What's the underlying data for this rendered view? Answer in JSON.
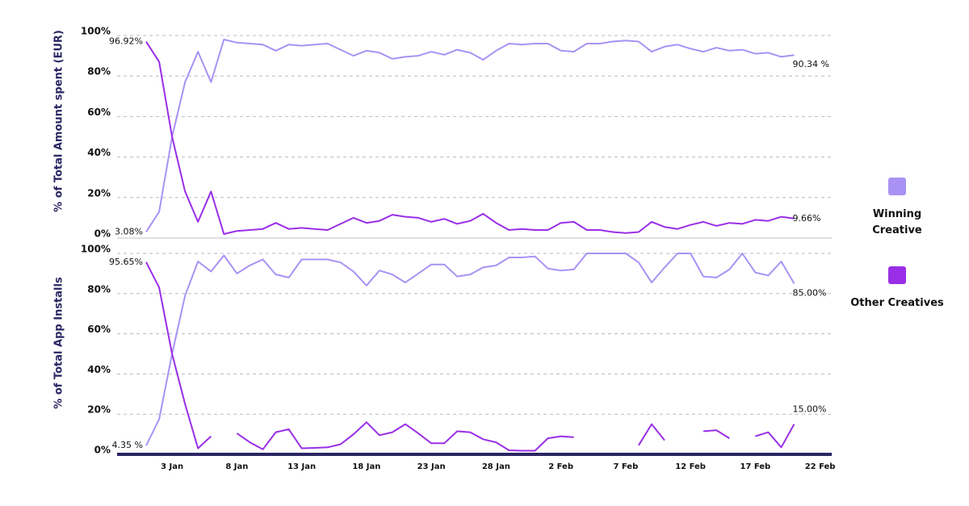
{
  "chart_data": [
    {
      "type": "line",
      "y_label": "% of Total Amount spent (EUR)",
      "ylim": [
        0,
        100
      ],
      "yticks": [
        {
          "value": 0,
          "label": "0%"
        },
        {
          "value": 20,
          "label": "20%"
        },
        {
          "value": 40,
          "label": "40%"
        },
        {
          "value": 60,
          "label": "60%"
        },
        {
          "value": 80,
          "label": "80%"
        },
        {
          "value": 100,
          "label": "100%"
        }
      ],
      "grid": true,
      "legend": "right",
      "series": [
        {
          "name": "Winning Creative",
          "color": "#a992f4",
          "values": [
            3.08,
            13,
            50,
            77,
            92,
            77,
            98,
            96.5,
            96,
            95.5,
            92.5,
            95.5,
            95,
            95.5,
            96,
            93,
            90,
            92.5,
            91.5,
            88.5,
            89.5,
            90,
            92,
            90.5,
            93,
            91.5,
            88,
            92.5,
            96,
            95.5,
            96,
            96,
            92.5,
            92,
            96,
            96,
            97,
            97.5,
            97,
            92,
            94.5,
            95.5,
            93.5,
            92,
            94,
            92.5,
            93,
            91,
            91.5,
            89.5,
            90.34,
            null,
            null
          ],
          "value_labels": [
            "3.08%",
            null,
            null,
            null,
            null,
            null,
            null,
            null,
            null,
            null,
            null,
            null,
            null,
            null,
            null,
            null,
            null,
            null,
            null,
            null,
            null,
            null,
            null,
            null,
            null,
            null,
            null,
            null,
            null,
            null,
            null,
            null,
            null,
            null,
            null,
            null,
            null,
            null,
            null,
            null,
            null,
            null,
            null,
            null,
            null,
            null,
            null,
            null,
            null,
            null,
            "90.34 %",
            null,
            null
          ]
        },
        {
          "name": "Other Creatives",
          "color": "#9a2ee6",
          "values": [
            96.92,
            87,
            50,
            23,
            8,
            23,
            2,
            3.5,
            4,
            4.5,
            7.5,
            4.5,
            5,
            4.5,
            4,
            7,
            10,
            7.5,
            8.5,
            11.5,
            10.5,
            10,
            8,
            9.5,
            7,
            8.5,
            12,
            7.5,
            4,
            4.5,
            4,
            4,
            7.5,
            8,
            4,
            4,
            3,
            2.5,
            3,
            8,
            5.5,
            4.5,
            6.5,
            8,
            6,
            7.5,
            7,
            9,
            8.5,
            10.5,
            9.66,
            null,
            null
          ],
          "value_labels": [
            "96.92%",
            null,
            null,
            null,
            null,
            null,
            null,
            null,
            null,
            null,
            null,
            null,
            null,
            null,
            null,
            null,
            null,
            null,
            null,
            null,
            null,
            null,
            null,
            null,
            null,
            null,
            null,
            null,
            null,
            null,
            null,
            null,
            null,
            null,
            null,
            null,
            null,
            null,
            null,
            null,
            null,
            null,
            null,
            null,
            null,
            null,
            null,
            null,
            null,
            null,
            "9.66%",
            null,
            null
          ]
        }
      ]
    },
    {
      "type": "line",
      "y_label": "% of Total App Installs",
      "ylim": [
        0,
        100
      ],
      "yticks": [
        {
          "value": 0,
          "label": "0%"
        },
        {
          "value": 20,
          "label": "20%"
        },
        {
          "value": 40,
          "label": "40%"
        },
        {
          "value": 60,
          "label": "60%"
        },
        {
          "value": 80,
          "label": "80%"
        },
        {
          "value": 100,
          "label": "100%"
        }
      ],
      "grid": true,
      "categories": [
        null,
        null,
        "3 Jan",
        null,
        null,
        null,
        null,
        "8 Jan",
        null,
        null,
        null,
        null,
        "13 Jan",
        null,
        null,
        null,
        null,
        "18 Jan",
        null,
        null,
        null,
        null,
        "23 Jan",
        null,
        null,
        null,
        null,
        "28 Jan",
        null,
        null,
        null,
        null,
        "2 Feb",
        null,
        null,
        null,
        null,
        "7 Feb",
        null,
        null,
        null,
        null,
        "12 Feb",
        null,
        null,
        null,
        null,
        "17 Feb",
        null,
        null,
        null,
        null,
        "22 Feb"
      ],
      "series": [
        {
          "color": "#a992f4",
          "values": [
            4.35,
            17.5,
            50,
            79,
            96,
            91,
            99,
            90,
            94,
            97,
            89.5,
            88,
            97,
            97,
            97,
            95.5,
            91,
            84,
            91.5,
            89.5,
            85.5,
            90,
            94.5,
            94.5,
            88.5,
            89.5,
            93,
            94,
            98,
            98,
            98.5,
            92.5,
            91.5,
            92,
            100,
            100,
            100,
            100,
            95.5,
            85.5,
            93,
            100,
            100,
            88.5,
            88,
            92,
            100,
            90.5,
            89,
            96,
            85.0,
            null,
            null
          ],
          "value_labels": [
            "4.35 %",
            null,
            null,
            null,
            null,
            null,
            null,
            null,
            null,
            null,
            null,
            null,
            null,
            null,
            null,
            null,
            null,
            null,
            null,
            null,
            null,
            null,
            null,
            null,
            null,
            null,
            null,
            null,
            null,
            null,
            null,
            null,
            null,
            null,
            null,
            null,
            null,
            null,
            null,
            null,
            null,
            null,
            null,
            null,
            null,
            null,
            null,
            null,
            null,
            null,
            "85.00%",
            null,
            null
          ]
        },
        {
          "color": "#9a2ee6",
          "values": [
            95.65,
            83,
            50,
            25,
            3,
            9,
            null,
            10.5,
            6,
            2.5,
            11,
            12.5,
            3,
            3.2,
            3.5,
            5,
            10,
            16,
            9.5,
            11,
            15,
            10.5,
            5.5,
            5.5,
            11.5,
            11,
            7.5,
            6,
            2,
            1.8,
            1.8,
            8,
            9,
            8.5,
            null,
            null,
            null,
            null,
            4.5,
            15,
            7,
            null,
            null,
            11.5,
            12,
            8,
            null,
            9,
            11,
            3.5,
            15.0,
            null,
            null
          ],
          "value_labels": [
            "95.65%",
            null,
            null,
            null,
            null,
            null,
            null,
            null,
            null,
            null,
            null,
            null,
            null,
            null,
            null,
            null,
            null,
            null,
            null,
            null,
            null,
            null,
            null,
            null,
            null,
            null,
            null,
            null,
            null,
            null,
            null,
            null,
            null,
            null,
            null,
            null,
            null,
            null,
            null,
            null,
            null,
            null,
            null,
            null,
            null,
            null,
            null,
            null,
            null,
            null,
            "15.00%",
            null,
            null
          ]
        }
      ]
    }
  ]
}
